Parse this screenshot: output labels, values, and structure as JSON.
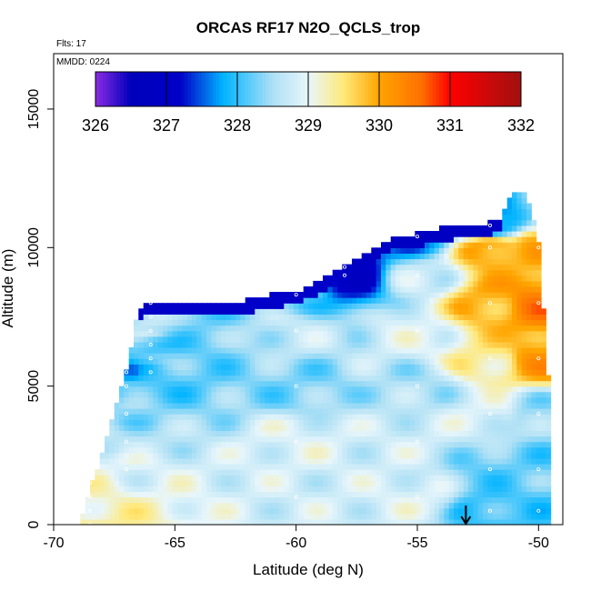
{
  "chart_data": {
    "type": "heatmap",
    "title": "ORCAS RF17 N2O_QCLS_trop",
    "flights_note": "Flts: 17",
    "date_note": "MMDD: 0224",
    "xlabel": "Latitude (deg N)",
    "ylabel": "Altitude (m)",
    "xlim": [
      -70,
      -49
    ],
    "ylim": [
      0,
      17000
    ],
    "x_ticks": [
      -70,
      -65,
      -60,
      -55,
      -50
    ],
    "y_ticks": [
      0,
      5000,
      10000,
      15000
    ],
    "colorbar": {
      "ticks": [
        326,
        327,
        328,
        329,
        330,
        331,
        332
      ],
      "range": [
        326,
        332
      ],
      "stops": [
        {
          "v": 326.0,
          "color": "#8a2be2"
        },
        {
          "v": 326.5,
          "color": "#0000bb"
        },
        {
          "v": 327.2,
          "color": "#0000c8"
        },
        {
          "v": 327.8,
          "color": "#00b4ff"
        },
        {
          "v": 328.5,
          "color": "#aee0f5"
        },
        {
          "v": 329.0,
          "color": "#e8f6fb"
        },
        {
          "v": 329.5,
          "color": "#ffe97a"
        },
        {
          "v": 330.0,
          "color": "#ffa500"
        },
        {
          "v": 330.6,
          "color": "#ff7000"
        },
        {
          "v": 331.0,
          "color": "#ff0000"
        },
        {
          "v": 332.0,
          "color": "#a01010"
        }
      ]
    },
    "envelope": {
      "lat": [
        -68.9,
        -68.2,
        -67.0,
        -66.5,
        -66.0,
        -64.0,
        -62.0,
        -61.0,
        -60.0,
        -59.0,
        -58.0,
        -57.0,
        -56.0,
        -55.0,
        -54.0,
        -53.0,
        -52.0,
        -51.5,
        -51.0,
        -50.5,
        -50.0,
        -49.5
      ],
      "top": [
        0,
        2000,
        5500,
        7700,
        8000,
        8000,
        8000,
        8200,
        8300,
        8700,
        9300,
        9700,
        10300,
        10400,
        10600,
        10700,
        10800,
        11000,
        12000,
        11800,
        10200,
        4200
      ]
    },
    "profiles": [
      {
        "lat": -68.5,
        "alt": [
          0,
          500,
          1000,
          1500,
          2000
        ],
        "n2o": [
          329.4,
          329.3,
          329.2,
          329.1,
          329.0
        ]
      },
      {
        "lat": -67.0,
        "alt": [
          2000,
          3000,
          4000,
          5000,
          5500
        ],
        "n2o": [
          328.9,
          328.6,
          328.4,
          328.1,
          327.8
        ]
      },
      {
        "lat": -66.0,
        "alt": [
          5500,
          6000,
          6500,
          7000,
          7500,
          8000
        ],
        "n2o": [
          328.1,
          328.3,
          328.0,
          328.5,
          328.8,
          326.9
        ]
      },
      {
        "lat": -60.0,
        "alt": [
          1000,
          3000,
          5000,
          7000,
          8300
        ],
        "n2o": [
          328.8,
          328.9,
          328.3,
          328.7,
          328.2
        ]
      },
      {
        "lat": -58.0,
        "alt": [
          9000,
          9300
        ],
        "n2o": [
          327.1,
          326.9
        ]
      },
      {
        "lat": -55.0,
        "alt": [
          1000,
          3000,
          5000,
          7000,
          9000,
          10400
        ],
        "n2o": [
          328.9,
          328.8,
          328.5,
          328.9,
          328.7,
          327.6
        ]
      },
      {
        "lat": -52.0,
        "alt": [
          500,
          2000,
          4000,
          6000,
          8000,
          10000,
          10800
        ],
        "n2o": [
          328.0,
          328.2,
          328.9,
          329.4,
          329.9,
          330.1,
          327.5
        ]
      },
      {
        "lat": -50.0,
        "alt": [
          500,
          2000,
          4000,
          6000,
          8000,
          10000
        ],
        "n2o": [
          328.1,
          328.2,
          328.4,
          330.1,
          330.4,
          329.9
        ]
      }
    ],
    "annotation_arrow_lat": -53.0
  }
}
